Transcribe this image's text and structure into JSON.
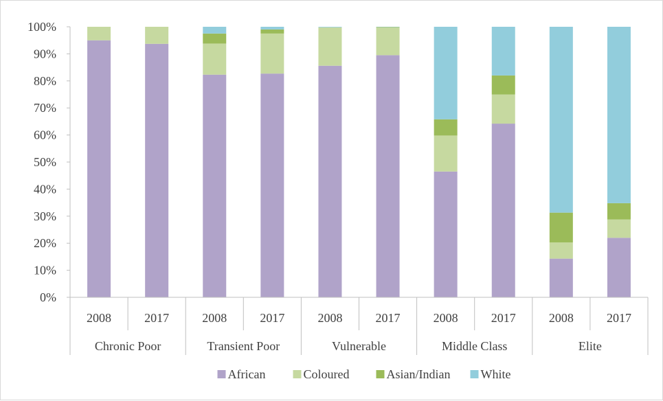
{
  "chart_data": {
    "type": "bar",
    "stacked": true,
    "percent_axis": true,
    "ylim": [
      0,
      100
    ],
    "y_ticks": [
      "0%",
      "10%",
      "20%",
      "30%",
      "40%",
      "50%",
      "60%",
      "70%",
      "80%",
      "90%",
      "100%"
    ],
    "groups": [
      "Chronic Poor",
      "Transient Poor",
      "Vulnerable",
      "Middle Class",
      "Elite"
    ],
    "categories": [
      "2008",
      "2017",
      "2008",
      "2017",
      "2008",
      "2017",
      "2008",
      "2017",
      "2008",
      "2017"
    ],
    "series": [
      {
        "name": "African",
        "color": "#b0a3c9",
        "values": [
          95.0,
          93.7,
          82.3,
          82.7,
          85.6,
          89.5,
          46.5,
          64.2,
          14.3,
          22.0
        ]
      },
      {
        "name": "Coloured",
        "color": "#c6d9a0",
        "values": [
          5.0,
          6.3,
          11.5,
          14.8,
          14.2,
          10.2,
          13.3,
          10.8,
          6.0,
          6.8
        ]
      },
      {
        "name": "Asian/Indian",
        "color": "#9bbb59",
        "values": [
          0.0,
          0.0,
          3.7,
          1.5,
          0.0,
          0.2,
          6.0,
          7.0,
          11.0,
          6.0
        ]
      },
      {
        "name": "White",
        "color": "#92cddc",
        "values": [
          0.0,
          0.0,
          2.5,
          1.0,
          0.2,
          0.1,
          34.2,
          18.0,
          68.7,
          65.2
        ]
      }
    ],
    "legend_position": "bottom",
    "grid": false
  }
}
